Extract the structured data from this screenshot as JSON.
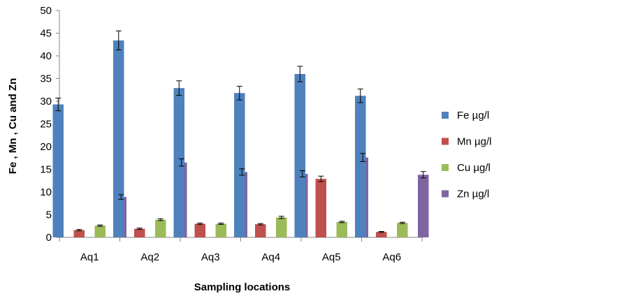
{
  "chart_data": {
    "type": "bar",
    "title": "",
    "xlabel": "Sampling locations",
    "ylabel": "Fe , Mn , Cu  and Zn",
    "ylim": [
      0,
      50
    ],
    "yticks": [
      0,
      5,
      10,
      15,
      20,
      25,
      30,
      35,
      40,
      45,
      50
    ],
    "grid": false,
    "legend_position": "right",
    "categories": [
      "Aq1",
      "Aq2",
      "Aq3",
      "Aq4",
      "Aq5",
      "Aq6"
    ],
    "series": [
      {
        "name": "Fe µg/l",
        "color": "#4F81BD",
        "values": [
          29.3,
          43.4,
          32.9,
          31.8,
          36.0,
          31.2
        ],
        "errors": [
          1.4,
          2.1,
          1.6,
          1.5,
          1.7,
          1.5
        ]
      },
      {
        "name": "Mn µg/l",
        "color": "#C0504D",
        "values": [
          1.6,
          1.9,
          3.0,
          2.9,
          12.9,
          1.2
        ],
        "errors": [
          0.15,
          0.15,
          0.15,
          0.15,
          0.6,
          0.1
        ]
      },
      {
        "name": "Cu µg/l",
        "color": "#9BBB59",
        "values": [
          2.6,
          3.9,
          3.0,
          4.4,
          3.4,
          3.2
        ],
        "errors": [
          0.15,
          0.2,
          0.15,
          0.25,
          0.15,
          0.15
        ]
      },
      {
        "name": "Zn µg/l",
        "color": "#8064A2",
        "values": [
          8.9,
          16.5,
          14.4,
          14.0,
          17.6,
          13.8
        ],
        "errors": [
          0.5,
          0.8,
          0.7,
          0.7,
          0.9,
          0.7
        ]
      }
    ]
  }
}
